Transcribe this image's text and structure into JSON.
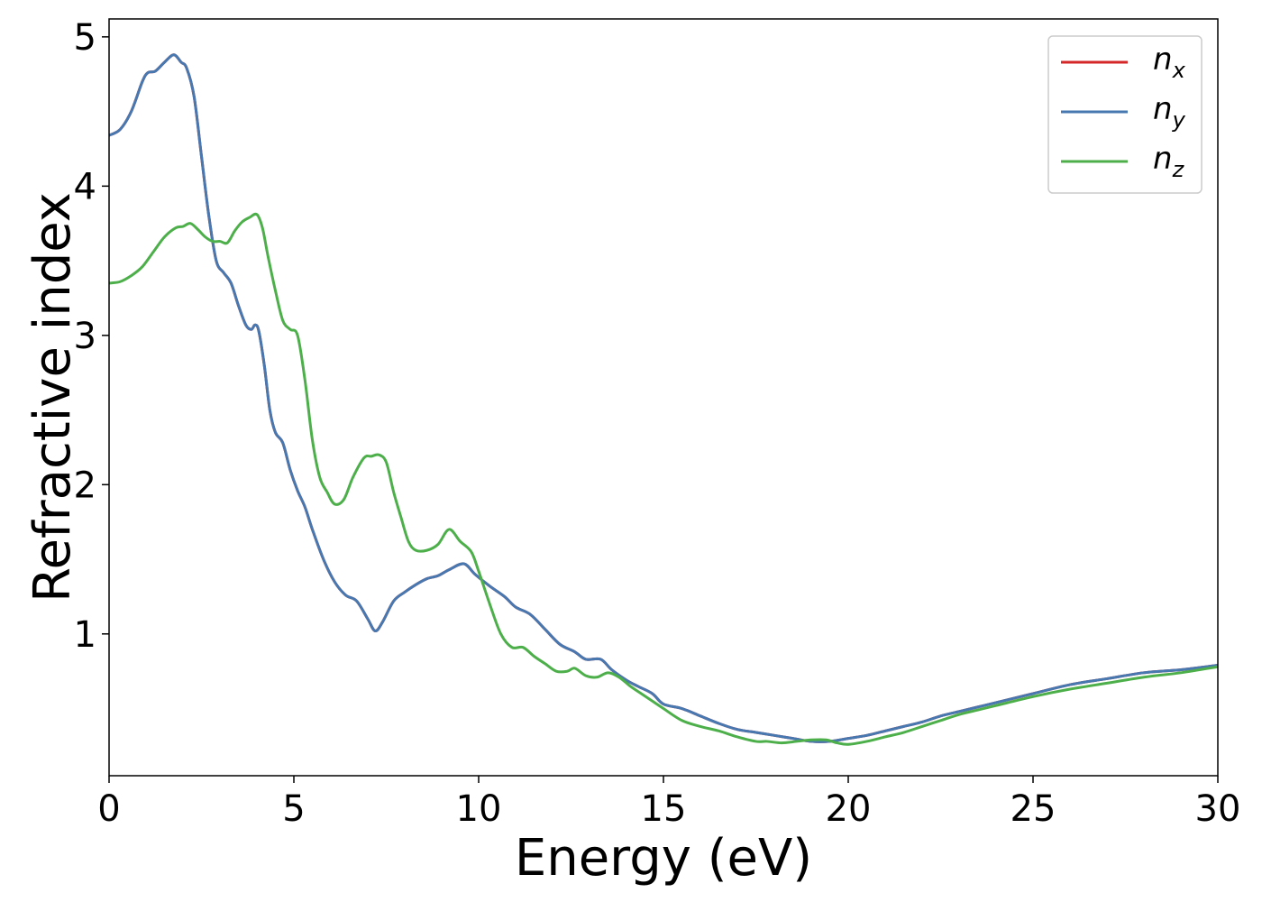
{
  "chart_data": {
    "type": "line",
    "title": "",
    "xlabel": "Energy (eV)",
    "ylabel": "Refractive index",
    "xlim": [
      0,
      30
    ],
    "ylim": [
      0.05,
      5.12
    ],
    "xticks": [
      0,
      5,
      10,
      15,
      20,
      25,
      30
    ],
    "yticks": [
      1,
      2,
      3,
      4,
      5
    ],
    "grid": false,
    "legend": "top-right",
    "series": [
      {
        "name": "n",
        "subscript": "x",
        "color": "#d62728",
        "x": [
          0,
          0.3,
          0.6,
          0.9,
          1.05,
          1.25,
          1.5,
          1.75,
          1.95,
          2.1,
          2.3,
          2.5,
          2.7,
          2.9,
          3.1,
          3.3,
          3.5,
          3.7,
          3.85,
          3.95,
          4.05,
          4.2,
          4.35,
          4.5,
          4.7,
          4.9,
          5.1,
          5.3,
          5.5,
          5.8,
          6.1,
          6.4,
          6.7,
          7.0,
          7.2,
          7.4,
          7.7,
          8.0,
          8.3,
          8.6,
          8.9,
          9.2,
          9.6,
          9.9,
          10.3,
          10.7,
          11.0,
          11.4,
          11.8,
          12.2,
          12.6,
          12.9,
          13.3,
          13.6,
          14.0,
          14.3,
          14.7,
          15.0,
          15.5,
          16.0,
          16.5,
          17.0,
          17.5,
          18.0,
          18.5,
          19.0,
          19.5,
          20.0,
          20.5,
          21.0,
          21.5,
          22.0,
          22.5,
          23.0,
          23.5,
          24.0,
          25.0,
          26.0,
          27.0,
          28.0,
          29.0,
          30.0
        ],
        "values": [
          4.34,
          4.38,
          4.5,
          4.7,
          4.76,
          4.77,
          4.83,
          4.88,
          4.83,
          4.79,
          4.6,
          4.2,
          3.8,
          3.5,
          3.42,
          3.35,
          3.2,
          3.07,
          3.04,
          3.07,
          3.03,
          2.8,
          2.5,
          2.35,
          2.28,
          2.1,
          1.96,
          1.85,
          1.7,
          1.5,
          1.35,
          1.26,
          1.22,
          1.1,
          1.02,
          1.08,
          1.22,
          1.28,
          1.33,
          1.37,
          1.39,
          1.43,
          1.47,
          1.4,
          1.32,
          1.25,
          1.18,
          1.13,
          1.03,
          0.93,
          0.88,
          0.83,
          0.83,
          0.76,
          0.69,
          0.65,
          0.6,
          0.53,
          0.5,
          0.45,
          0.4,
          0.36,
          0.34,
          0.32,
          0.3,
          0.28,
          0.28,
          0.3,
          0.32,
          0.35,
          0.38,
          0.41,
          0.45,
          0.48,
          0.51,
          0.54,
          0.6,
          0.66,
          0.7,
          0.74,
          0.76,
          0.79
        ]
      },
      {
        "name": "n",
        "subscript": "y",
        "color": "#4878b0",
        "x": [
          0,
          0.3,
          0.6,
          0.9,
          1.05,
          1.25,
          1.5,
          1.75,
          1.95,
          2.1,
          2.3,
          2.5,
          2.7,
          2.9,
          3.1,
          3.3,
          3.5,
          3.7,
          3.85,
          3.95,
          4.05,
          4.2,
          4.35,
          4.5,
          4.7,
          4.9,
          5.1,
          5.3,
          5.5,
          5.8,
          6.1,
          6.4,
          6.7,
          7.0,
          7.2,
          7.4,
          7.7,
          8.0,
          8.3,
          8.6,
          8.9,
          9.2,
          9.6,
          9.9,
          10.3,
          10.7,
          11.0,
          11.4,
          11.8,
          12.2,
          12.6,
          12.9,
          13.3,
          13.6,
          14.0,
          14.3,
          14.7,
          15.0,
          15.5,
          16.0,
          16.5,
          17.0,
          17.5,
          18.0,
          18.5,
          19.0,
          19.5,
          20.0,
          20.5,
          21.0,
          21.5,
          22.0,
          22.5,
          23.0,
          23.5,
          24.0,
          25.0,
          26.0,
          27.0,
          28.0,
          29.0,
          30.0
        ],
        "values": [
          4.34,
          4.38,
          4.5,
          4.7,
          4.76,
          4.77,
          4.83,
          4.88,
          4.83,
          4.79,
          4.6,
          4.2,
          3.8,
          3.5,
          3.42,
          3.35,
          3.2,
          3.07,
          3.04,
          3.07,
          3.03,
          2.8,
          2.5,
          2.35,
          2.28,
          2.1,
          1.96,
          1.85,
          1.7,
          1.5,
          1.35,
          1.26,
          1.22,
          1.1,
          1.02,
          1.08,
          1.22,
          1.28,
          1.33,
          1.37,
          1.39,
          1.43,
          1.47,
          1.4,
          1.32,
          1.25,
          1.18,
          1.13,
          1.03,
          0.93,
          0.88,
          0.83,
          0.83,
          0.76,
          0.69,
          0.65,
          0.6,
          0.53,
          0.5,
          0.45,
          0.4,
          0.36,
          0.34,
          0.32,
          0.3,
          0.28,
          0.28,
          0.3,
          0.32,
          0.35,
          0.38,
          0.41,
          0.45,
          0.48,
          0.51,
          0.54,
          0.6,
          0.66,
          0.7,
          0.74,
          0.76,
          0.79
        ]
      },
      {
        "name": "n",
        "subscript": "z",
        "color": "#4daf4a",
        "x": [
          0,
          0.3,
          0.6,
          0.9,
          1.2,
          1.5,
          1.8,
          2.0,
          2.2,
          2.4,
          2.6,
          2.8,
          3.0,
          3.2,
          3.4,
          3.6,
          3.8,
          4.0,
          4.15,
          4.3,
          4.5,
          4.7,
          4.9,
          5.1,
          5.3,
          5.5,
          5.7,
          5.9,
          6.1,
          6.35,
          6.6,
          6.9,
          7.1,
          7.3,
          7.5,
          7.7,
          7.9,
          8.1,
          8.3,
          8.6,
          8.9,
          9.2,
          9.5,
          9.8,
          10.0,
          10.3,
          10.6,
          10.9,
          11.2,
          11.5,
          11.8,
          12.1,
          12.4,
          12.6,
          12.9,
          13.2,
          13.5,
          13.8,
          14.1,
          14.4,
          14.7,
          15.0,
          15.5,
          16.0,
          16.5,
          17.0,
          17.5,
          17.8,
          18.2,
          18.6,
          19.0,
          19.4,
          19.7,
          20.0,
          20.5,
          21.0,
          21.5,
          22.0,
          22.5,
          23.0,
          23.5,
          24.0,
          25.0,
          26.0,
          27.0,
          28.0,
          29.0,
          30.0
        ],
        "values": [
          3.35,
          3.36,
          3.4,
          3.46,
          3.56,
          3.66,
          3.72,
          3.73,
          3.75,
          3.71,
          3.66,
          3.63,
          3.63,
          3.62,
          3.7,
          3.76,
          3.79,
          3.81,
          3.72,
          3.53,
          3.3,
          3.1,
          3.04,
          3.0,
          2.7,
          2.3,
          2.05,
          1.95,
          1.87,
          1.9,
          2.05,
          2.18,
          2.19,
          2.2,
          2.15,
          1.95,
          1.78,
          1.62,
          1.56,
          1.56,
          1.6,
          1.7,
          1.62,
          1.55,
          1.42,
          1.2,
          1.0,
          0.91,
          0.91,
          0.85,
          0.8,
          0.75,
          0.75,
          0.77,
          0.72,
          0.71,
          0.74,
          0.71,
          0.65,
          0.6,
          0.55,
          0.5,
          0.42,
          0.38,
          0.35,
          0.31,
          0.28,
          0.28,
          0.27,
          0.28,
          0.29,
          0.29,
          0.27,
          0.26,
          0.28,
          0.31,
          0.34,
          0.38,
          0.42,
          0.46,
          0.49,
          0.52,
          0.58,
          0.63,
          0.67,
          0.71,
          0.74,
          0.78
        ]
      }
    ]
  }
}
